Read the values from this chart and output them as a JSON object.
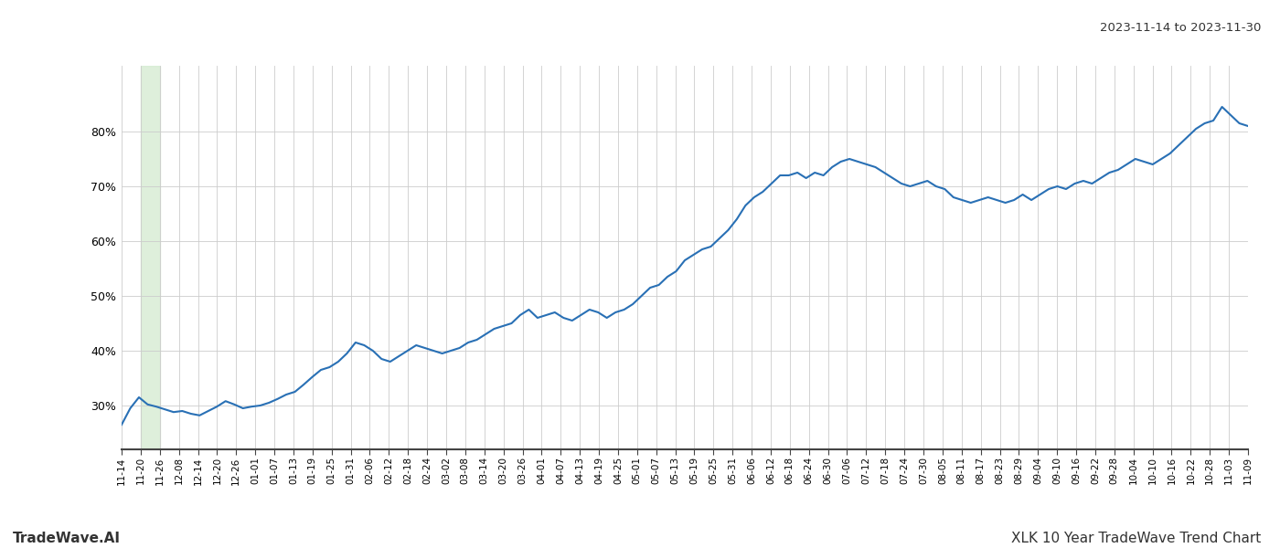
{
  "title_top_right": "2023-11-14 to 2023-11-30",
  "title_bottom_left": "TradeWave.AI",
  "title_bottom_right": "XLK 10 Year TradeWave Trend Chart",
  "line_color": "#2970b5",
  "highlight_color": "#d6ecd2",
  "highlight_alpha": 0.8,
  "background_color": "#ffffff",
  "grid_color": "#cccccc",
  "ylim": [
    22,
    92
  ],
  "yticks": [
    30,
    40,
    50,
    60,
    70,
    80
  ],
  "x_labels": [
    "11-14",
    "11-20",
    "11-26",
    "12-08",
    "12-14",
    "12-20",
    "12-26",
    "01-01",
    "01-07",
    "01-13",
    "01-19",
    "01-25",
    "01-31",
    "02-06",
    "02-12",
    "02-18",
    "02-24",
    "03-02",
    "03-08",
    "03-14",
    "03-20",
    "03-26",
    "04-01",
    "04-07",
    "04-13",
    "04-19",
    "04-25",
    "05-01",
    "05-07",
    "05-13",
    "05-19",
    "05-25",
    "05-31",
    "06-06",
    "06-12",
    "06-18",
    "06-24",
    "06-30",
    "07-06",
    "07-12",
    "07-18",
    "07-24",
    "07-30",
    "08-05",
    "08-11",
    "08-17",
    "08-23",
    "08-29",
    "09-04",
    "09-10",
    "09-16",
    "09-22",
    "09-28",
    "10-04",
    "10-10",
    "10-16",
    "10-22",
    "10-28",
    "11-03",
    "11-09"
  ],
  "highlight_label_start": "11-20",
  "highlight_label_end": "11-26",
  "y_values": [
    26.5,
    29.5,
    31.5,
    30.2,
    29.8,
    29.3,
    28.8,
    29.0,
    28.5,
    28.2,
    29.0,
    29.8,
    30.8,
    30.2,
    29.5,
    29.8,
    30.0,
    30.5,
    31.2,
    32.0,
    32.5,
    33.8,
    35.2,
    36.5,
    37.0,
    38.0,
    39.5,
    41.5,
    41.0,
    40.0,
    38.5,
    38.0,
    39.0,
    40.0,
    41.0,
    40.5,
    40.0,
    39.5,
    40.0,
    40.5,
    41.5,
    42.0,
    43.0,
    44.0,
    44.5,
    45.0,
    46.5,
    47.5,
    46.0,
    46.5,
    47.0,
    46.0,
    45.5,
    46.5,
    47.5,
    47.0,
    46.0,
    47.0,
    47.5,
    48.5,
    50.0,
    51.5,
    52.0,
    53.5,
    54.5,
    56.5,
    57.5,
    58.5,
    59.0,
    60.5,
    62.0,
    64.0,
    66.5,
    68.0,
    69.0,
    70.5,
    72.0,
    72.0,
    72.5,
    71.5,
    72.5,
    72.0,
    73.5,
    74.5,
    75.0,
    74.5,
    74.0,
    73.5,
    72.5,
    71.5,
    70.5,
    70.0,
    70.5,
    71.0,
    70.0,
    69.5,
    68.0,
    67.5,
    67.0,
    67.5,
    68.0,
    67.5,
    67.0,
    67.5,
    68.5,
    67.5,
    68.5,
    69.5,
    70.0,
    69.5,
    70.5,
    71.0,
    70.5,
    71.5,
    72.5,
    73.0,
    74.0,
    75.0,
    74.5,
    74.0,
    75.0,
    76.0,
    77.5,
    79.0,
    80.5,
    81.5,
    82.0,
    84.5,
    83.0,
    81.5,
    81.0
  ]
}
